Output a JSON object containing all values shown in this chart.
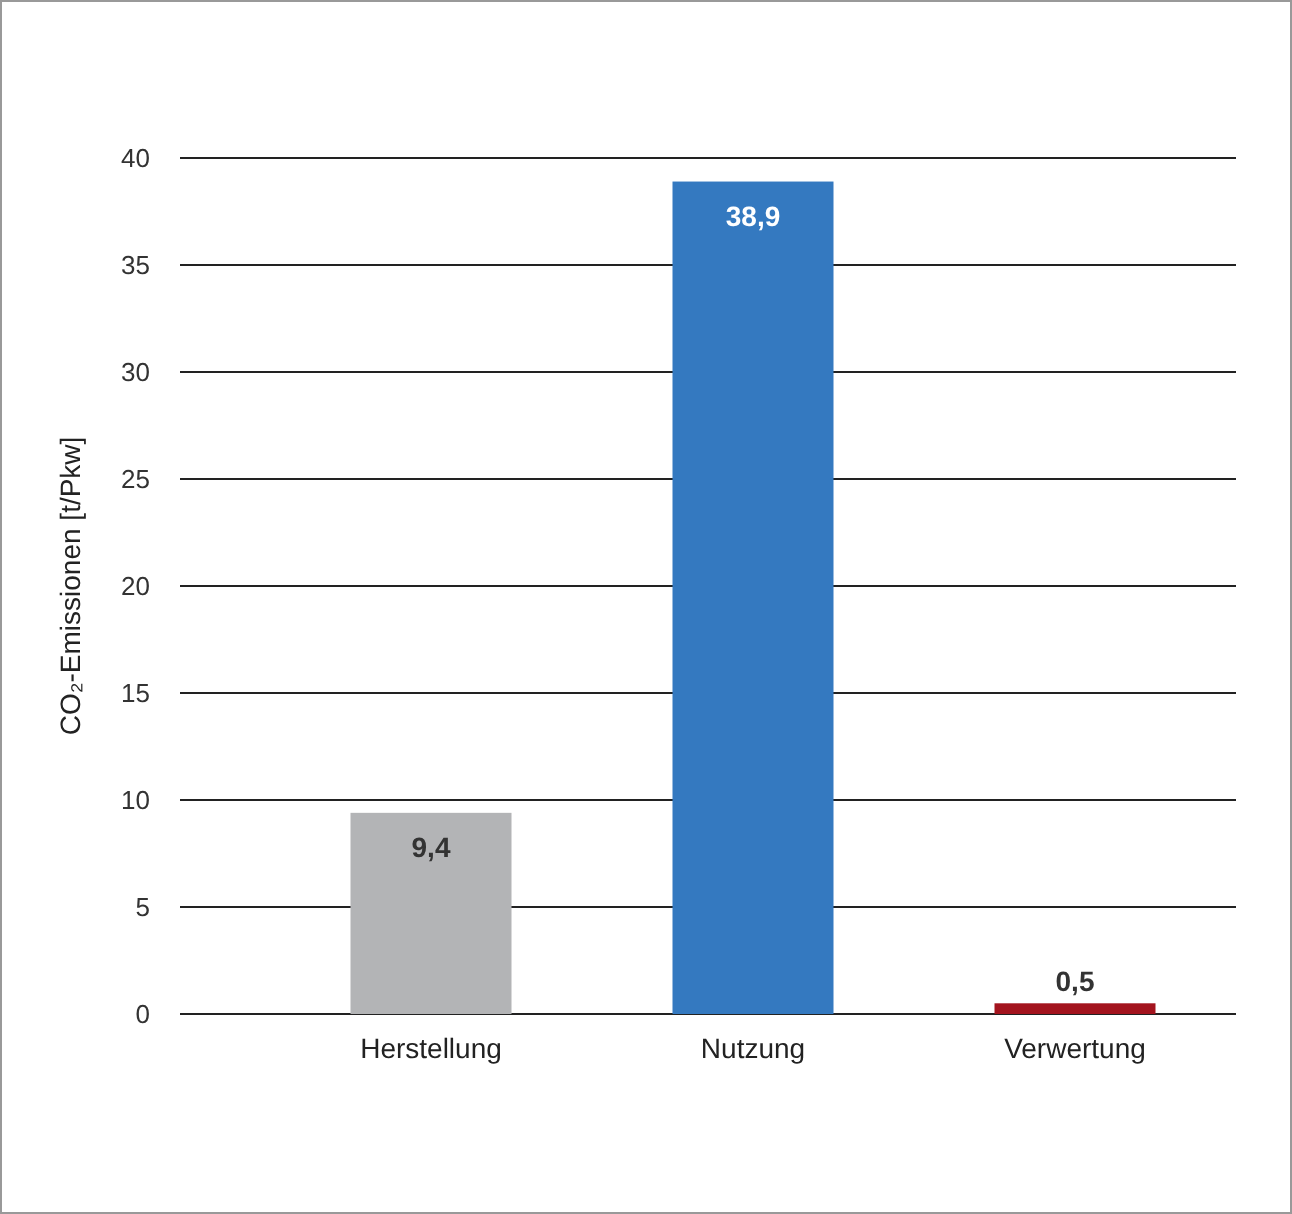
{
  "chart_data": {
    "type": "bar",
    "ylabel": "CO₂-Emissionen [t/Pkw]",
    "categories": [
      "Herstellung",
      "Nutzung",
      "Verwertung"
    ],
    "values": [
      9.4,
      38.9,
      0.5
    ],
    "colors": [
      "#b3b4b6",
      "#3479c0",
      "#a3141e"
    ],
    "value_labels": [
      "9,4",
      "38,9",
      "0,5"
    ],
    "ylim": [
      0,
      40
    ],
    "yticks": [
      0,
      5,
      10,
      15,
      20,
      25,
      30,
      35,
      40
    ],
    "grid": "y"
  }
}
